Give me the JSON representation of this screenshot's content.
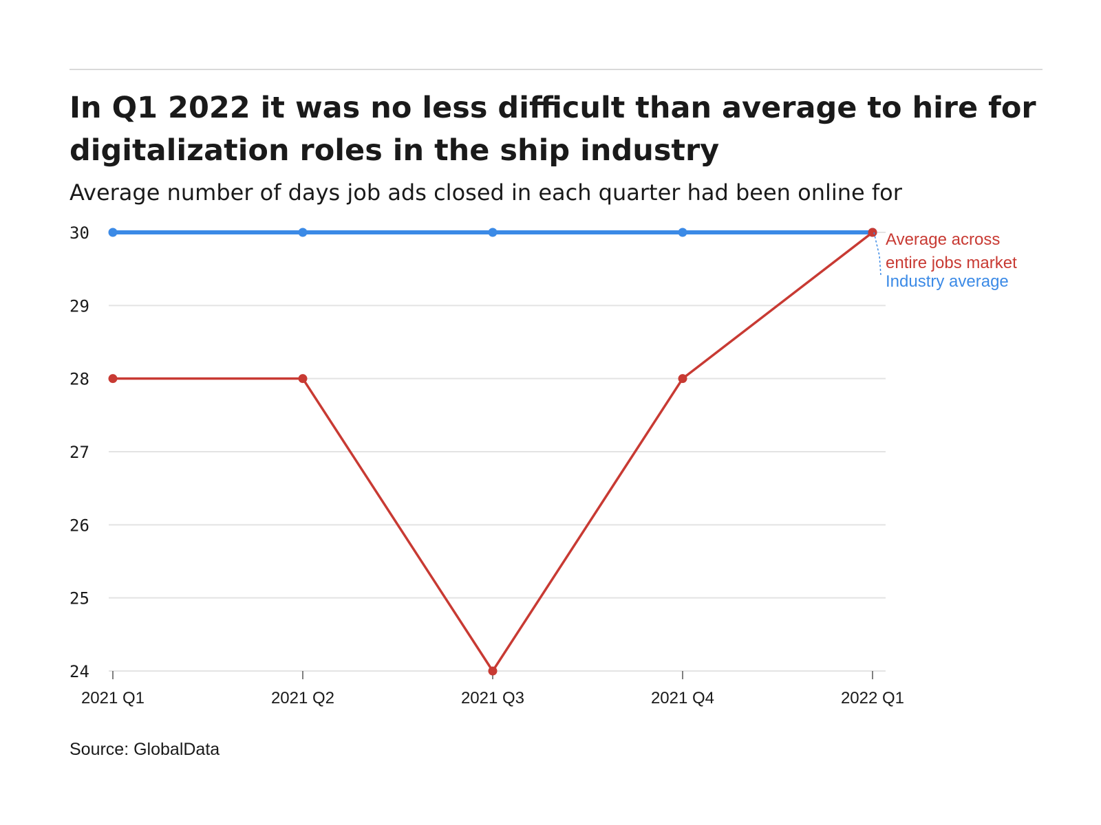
{
  "chart_data": {
    "type": "line",
    "title": "In Q1 2022 it was no less difficult than average to hire for digitalization roles in the ship industry",
    "subtitle": "Average number of days job ads closed in each quarter had been online for",
    "categories": [
      "2021 Q1",
      "2021 Q2",
      "2021 Q3",
      "2021 Q4",
      "2022 Q1"
    ],
    "series": [
      {
        "name": "Industry average",
        "label_lines": [
          "Industry average"
        ],
        "color": "#3b8ae6",
        "values": [
          30,
          30,
          30,
          30,
          30
        ]
      },
      {
        "name": "Average across entire jobs market",
        "label_lines": [
          "Average across",
          "entire jobs market"
        ],
        "color": "#c83a33",
        "values": [
          28,
          28,
          24,
          28,
          30
        ]
      }
    ],
    "y_ticks": [
      24,
      25,
      26,
      27,
      28,
      29,
      30
    ],
    "ylim": [
      24,
      30
    ],
    "xlabel": "",
    "ylabel": "",
    "grid": true,
    "source": "Source: GlobalData"
  }
}
